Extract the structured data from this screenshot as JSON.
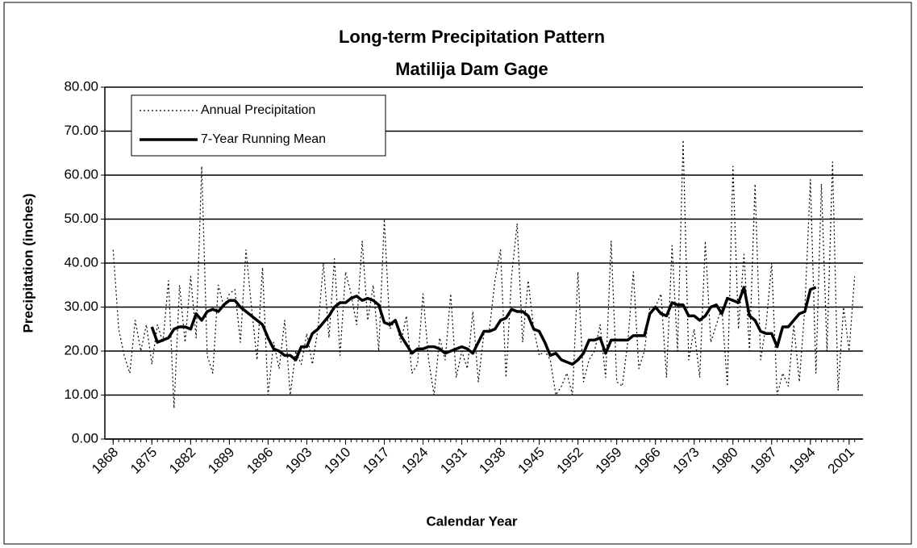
{
  "chart_data": {
    "type": "line",
    "title": "Long-term Precipitation Pattern",
    "subtitle": "Matilija Dam Gage",
    "x_label": "Calendar Year",
    "y_label": "Precipitation (inches)",
    "x": [
      1868,
      1869,
      1870,
      1871,
      1872,
      1873,
      1874,
      1875,
      1876,
      1877,
      1878,
      1879,
      1880,
      1881,
      1882,
      1883,
      1884,
      1885,
      1886,
      1887,
      1888,
      1889,
      1890,
      1891,
      1892,
      1893,
      1894,
      1895,
      1896,
      1897,
      1898,
      1899,
      1900,
      1901,
      1902,
      1903,
      1904,
      1905,
      1906,
      1907,
      1908,
      1909,
      1910,
      1911,
      1912,
      1913,
      1914,
      1915,
      1916,
      1917,
      1918,
      1919,
      1920,
      1921,
      1922,
      1923,
      1924,
      1925,
      1926,
      1927,
      1928,
      1929,
      1930,
      1931,
      1932,
      1933,
      1934,
      1935,
      1936,
      1937,
      1938,
      1939,
      1940,
      1941,
      1942,
      1943,
      1944,
      1945,
      1946,
      1947,
      1948,
      1949,
      1950,
      1951,
      1952,
      1953,
      1954,
      1955,
      1956,
      1957,
      1958,
      1959,
      1960,
      1961,
      1962,
      1963,
      1964,
      1965,
      1966,
      1967,
      1968,
      1969,
      1970,
      1971,
      1972,
      1973,
      1974,
      1975,
      1976,
      1977,
      1978,
      1979,
      1980,
      1981,
      1982,
      1983,
      1984,
      1985,
      1986,
      1987,
      1988,
      1989,
      1990,
      1991,
      1992,
      1993,
      1994,
      1995,
      1996,
      1997,
      1998,
      1999,
      2000,
      2001,
      2002
    ],
    "series": [
      {
        "name": "Annual Precipitation",
        "color": "#000000",
        "style": "dotted",
        "values": [
          43,
          25,
          19,
          15,
          27,
          20,
          26,
          17,
          26,
          22,
          36,
          7,
          35,
          22,
          37,
          23,
          62,
          19,
          15,
          35,
          30,
          33,
          34,
          22,
          43,
          30,
          18,
          39,
          10,
          22,
          16,
          27,
          10,
          20,
          17,
          24,
          17,
          25,
          40,
          23,
          41,
          19,
          38,
          33,
          26,
          45,
          27,
          35,
          20,
          50,
          25,
          27,
          22,
          28,
          15,
          17,
          33,
          18,
          10,
          23,
          18,
          33,
          14,
          20,
          16,
          29,
          13,
          24,
          25,
          36,
          43,
          14,
          37,
          49,
          22,
          36,
          25,
          19,
          20,
          18,
          10,
          12,
          15,
          10,
          38,
          13,
          18,
          20,
          26,
          14,
          45,
          13,
          12,
          22,
          38,
          16,
          20,
          30,
          30,
          33,
          14,
          44,
          20,
          68,
          18,
          25,
          14,
          45,
          22,
          26,
          30,
          12,
          62,
          25,
          42,
          20,
          58,
          18,
          26,
          40,
          10,
          15,
          12,
          26,
          13,
          30,
          59,
          15,
          58,
          20,
          63,
          11,
          30,
          20,
          37
        ]
      },
      {
        "name": "7-Year Running Mean",
        "color": "#000000",
        "style": "solid",
        "values": [
          null,
          null,
          null,
          null,
          null,
          null,
          null,
          25.5,
          22,
          22.5,
          23,
          25,
          25.5,
          25.5,
          25,
          28.5,
          27,
          29,
          29.5,
          29,
          30.5,
          31.5,
          31.5,
          30,
          29,
          28,
          27,
          26,
          23,
          20.5,
          20,
          19,
          19,
          18,
          21,
          21,
          24,
          25,
          26.5,
          28,
          30,
          31,
          31,
          32,
          32.5,
          31.5,
          32,
          31.5,
          30.5,
          26.5,
          26,
          27,
          23.5,
          21.5,
          19.5,
          20.5,
          20.5,
          21,
          21,
          20.5,
          19.5,
          20,
          20.5,
          21,
          20.5,
          19.5,
          22,
          24.5,
          24.5,
          25,
          27,
          27.5,
          29.5,
          29,
          29,
          28,
          25,
          24.5,
          22,
          19,
          19.5,
          18,
          17.5,
          17,
          18,
          19.5,
          22.5,
          22.5,
          23,
          19.5,
          22.5,
          22.5,
          22.5,
          22.5,
          23.5,
          23.5,
          23.5,
          28.5,
          30,
          28.5,
          28,
          31,
          30.5,
          30.5,
          28,
          28,
          27,
          28,
          30,
          30.5,
          28.5,
          32,
          31.5,
          31,
          34.5,
          28,
          27,
          24.5,
          24,
          24,
          21,
          25.5,
          25.5,
          27,
          28.5,
          29,
          34,
          34.5,
          null,
          null,
          null,
          null,
          null,
          null,
          null
        ]
      }
    ],
    "xlim": [
      1866.5,
      2003.5
    ],
    "xticks": [
      1868,
      1875,
      1882,
      1889,
      1896,
      1903,
      1910,
      1917,
      1924,
      1931,
      1938,
      1945,
      1952,
      1959,
      1966,
      1973,
      1980,
      1987,
      1994,
      2001
    ],
    "ylim": [
      0,
      80
    ],
    "yticks": [
      {
        "value": 0,
        "label": "0.00"
      },
      {
        "value": 10,
        "label": "10.00"
      },
      {
        "value": 20,
        "label": "20.00"
      },
      {
        "value": 30,
        "label": "30.00"
      },
      {
        "value": 40,
        "label": "40.00"
      },
      {
        "value": 50,
        "label": "50.00"
      },
      {
        "value": 60,
        "label": "60.00"
      },
      {
        "value": 70,
        "label": "70.00"
      },
      {
        "value": 80,
        "label": "80.00"
      }
    ],
    "grid": true,
    "legend": "upper left"
  }
}
